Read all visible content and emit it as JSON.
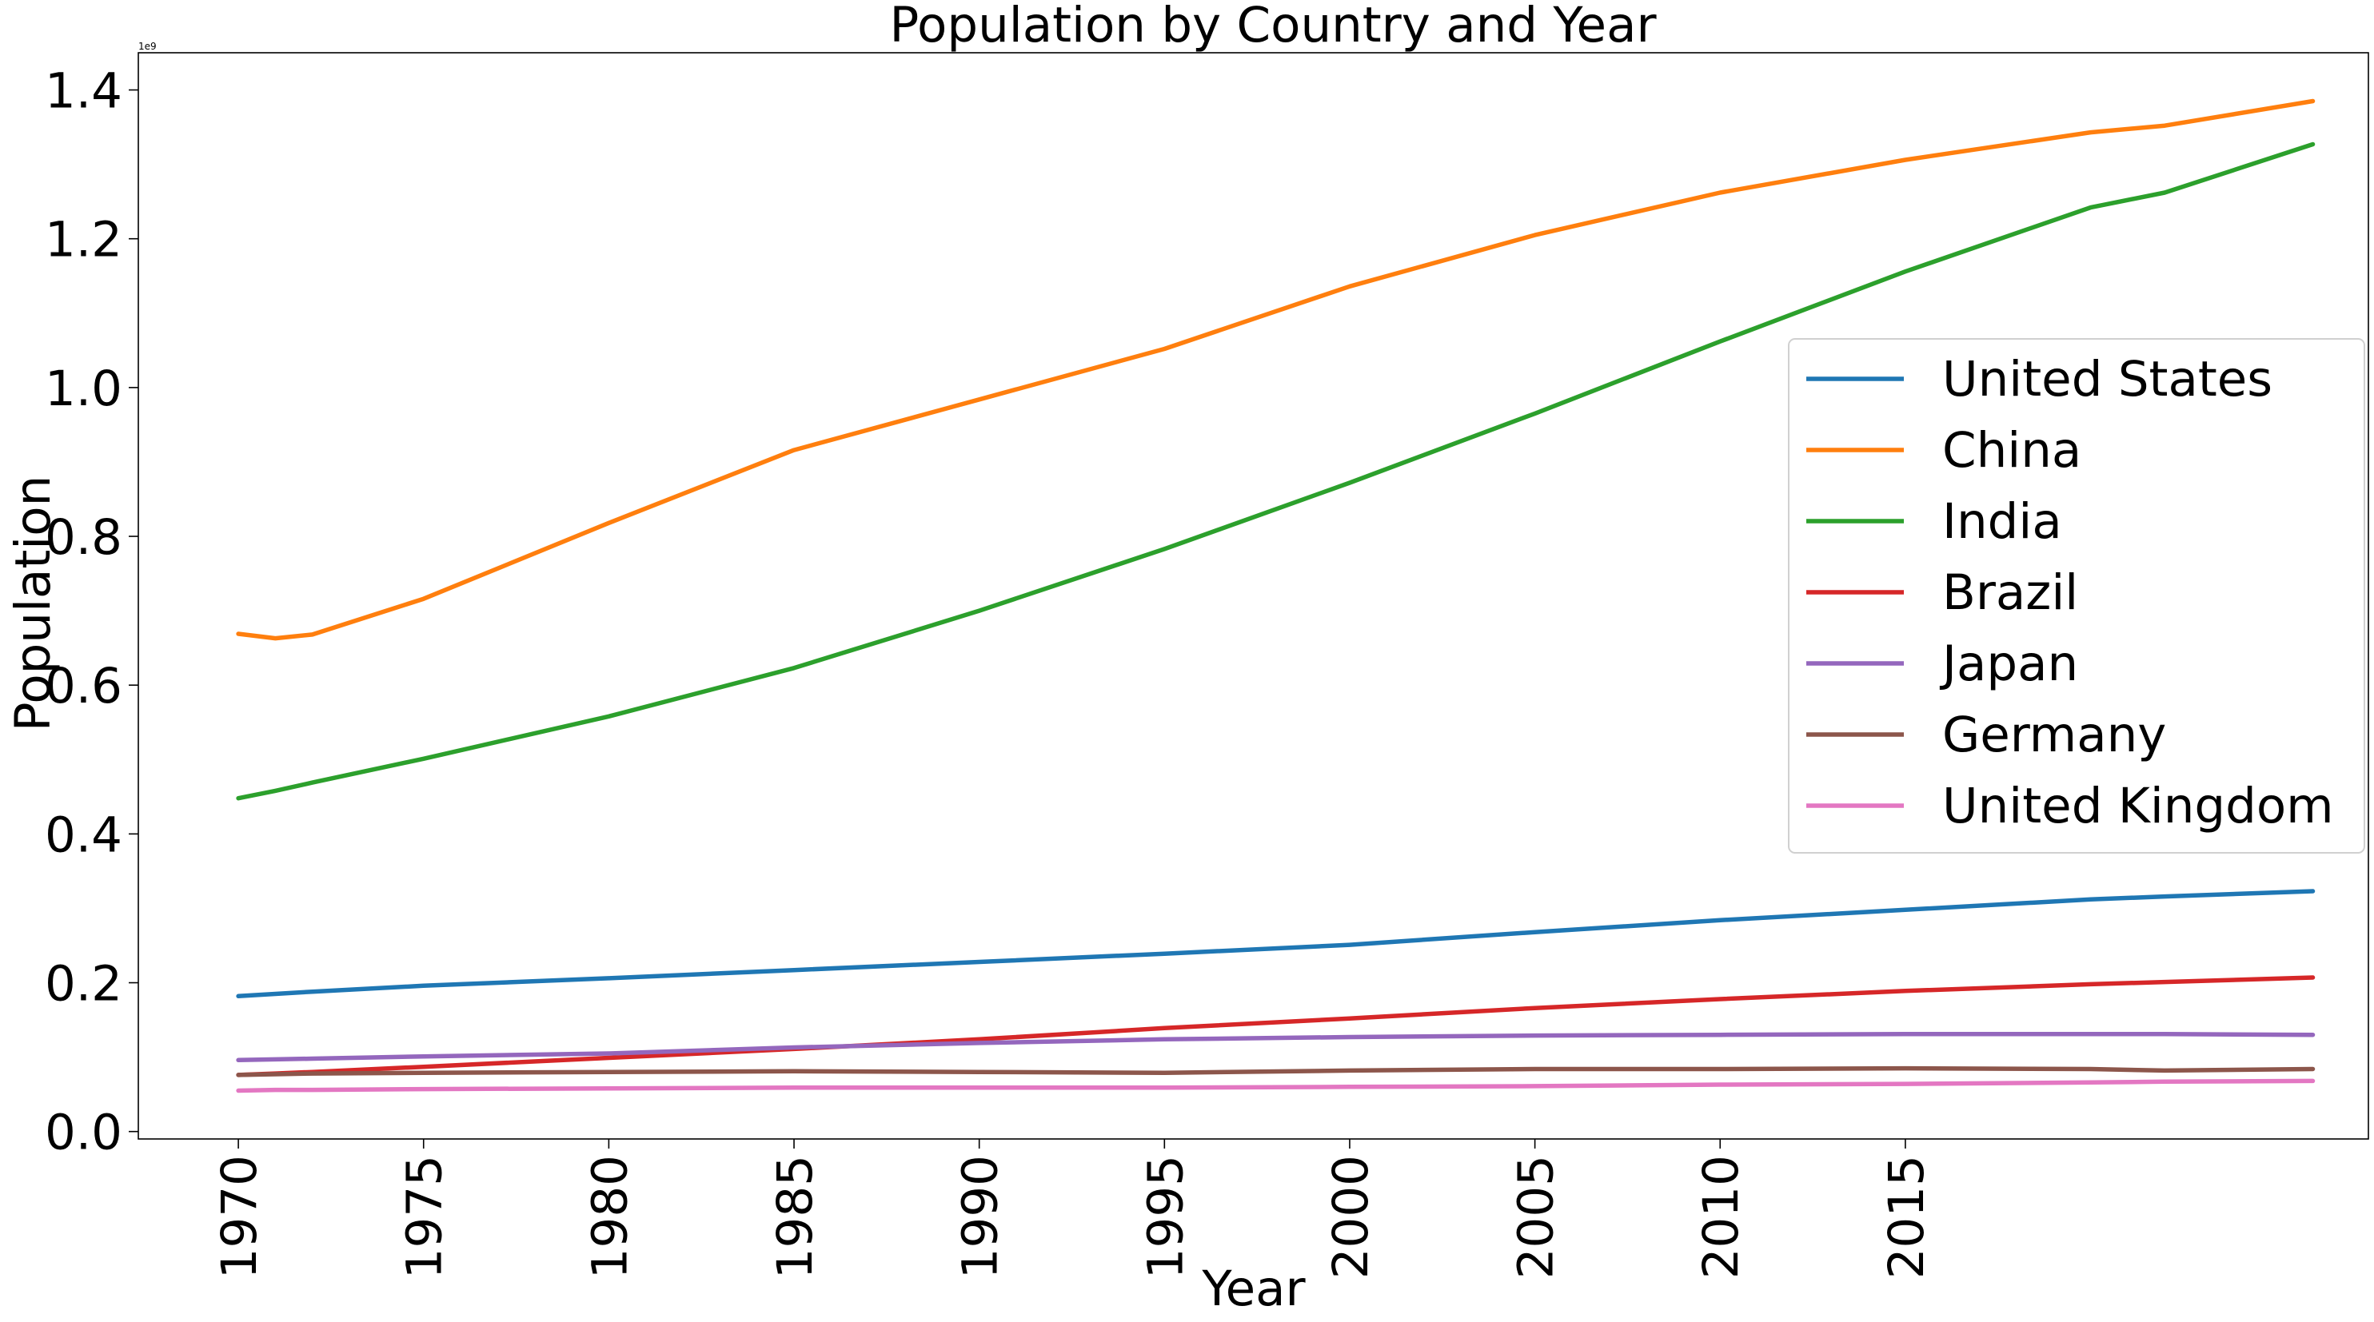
{
  "chart_data": {
    "type": "line",
    "title": "Population by Country and Year",
    "xlabel": "Year",
    "ylabel": "Population",
    "y_offset_text": "1e9",
    "xlim": [
      1967.3,
      2027.5
    ],
    "ylim": [
      -0.01,
      1.45
    ],
    "y_scale_note": "values in billions (1e9)",
    "xticks": [
      1970,
      1975,
      1980,
      1985,
      1990,
      1995,
      2000,
      2005,
      2010,
      2015
    ],
    "yticks": [
      0.0,
      0.2,
      0.4,
      0.6,
      0.8,
      1.0,
      1.2,
      1.4
    ],
    "ytick_labels": [
      "0.0",
      "0.2",
      "0.4",
      "0.6",
      "0.8",
      "1.0",
      "1.2",
      "1.4"
    ],
    "grid": false,
    "legend_position": "center-right",
    "x": [
      1970,
      1971,
      1972,
      1975,
      1980,
      1985,
      1990,
      1995,
      2000,
      2005,
      2010,
      2015,
      2020,
      2022,
      2026
    ],
    "series": [
      {
        "name": "United States",
        "color": "#1f77b4",
        "values": [
          0.182,
          0.185,
          0.188,
          0.196,
          0.206,
          0.217,
          0.228,
          0.239,
          0.251,
          0.268,
          0.284,
          0.298,
          0.312,
          0.316,
          0.323
        ]
      },
      {
        "name": "China",
        "color": "#ff7f0e",
        "values": [
          0.669,
          0.663,
          0.668,
          0.716,
          0.818,
          0.916,
          0.984,
          1.052,
          1.136,
          1.205,
          1.262,
          1.306,
          1.343,
          1.352,
          1.385
        ]
      },
      {
        "name": "India",
        "color": "#2ca02c",
        "values": [
          0.448,
          0.458,
          0.469,
          0.501,
          0.558,
          0.623,
          0.7,
          0.783,
          0.872,
          0.965,
          1.062,
          1.156,
          1.242,
          1.262,
          1.327
        ]
      },
      {
        "name": "Brazil",
        "color": "#d62728",
        "values": [
          0.076,
          0.078,
          0.08,
          0.087,
          0.099,
          0.111,
          0.124,
          0.139,
          0.152,
          0.166,
          0.178,
          0.189,
          0.198,
          0.201,
          0.207
        ]
      },
      {
        "name": "Japan",
        "color": "#9467bd",
        "values": [
          0.096,
          0.097,
          0.098,
          0.101,
          0.105,
          0.113,
          0.119,
          0.124,
          0.127,
          0.129,
          0.13,
          0.131,
          0.131,
          0.131,
          0.13
        ]
      },
      {
        "name": "Germany",
        "color": "#8c564b",
        "values": [
          0.076,
          0.077,
          0.078,
          0.079,
          0.08,
          0.081,
          0.08,
          0.079,
          0.082,
          0.084,
          0.084,
          0.085,
          0.084,
          0.082,
          0.084
        ]
      },
      {
        "name": "United Kingdom",
        "color": "#e377c2",
        "values": [
          0.055,
          0.056,
          0.056,
          0.057,
          0.058,
          0.059,
          0.059,
          0.059,
          0.06,
          0.061,
          0.063,
          0.064,
          0.066,
          0.067,
          0.068
        ]
      }
    ]
  }
}
